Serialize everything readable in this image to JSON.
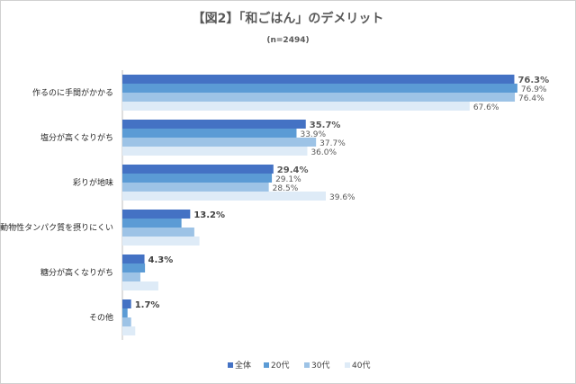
{
  "chart_data": {
    "type": "bar",
    "orientation": "horizontal",
    "title": "【図2】「和ごはん」のデメリット",
    "subtitle": "(n=2494)",
    "categories": [
      "作るのに手間がかかる",
      "塩分が高くなりがち",
      "彩りが地味",
      "動物性タンパク質を摂りにくい",
      "糖分が高くなりがち",
      "その他"
    ],
    "series": [
      {
        "name": "全体",
        "values": [
          76.3,
          35.7,
          29.4,
          13.2,
          4.3,
          1.7
        ],
        "labels": [
          "76.3%",
          "35.7%",
          "29.4%",
          "13.2%",
          "4.3%",
          "1.7%"
        ]
      },
      {
        "name": "20代",
        "values": [
          76.9,
          33.9,
          29.1,
          11.5,
          4.4,
          1.0
        ],
        "labels": [
          "76.9%",
          "33.9%",
          "29.1%",
          "",
          "",
          ""
        ]
      },
      {
        "name": "30代",
        "values": [
          76.4,
          37.7,
          28.5,
          14.0,
          3.5,
          1.7
        ],
        "labels": [
          "76.4%",
          "37.7%",
          "28.5%",
          "",
          "",
          ""
        ]
      },
      {
        "name": "40代",
        "values": [
          67.6,
          36.0,
          39.6,
          15.0,
          7.0,
          2.5
        ],
        "labels": [
          "67.6%",
          "36.0%",
          "39.6%",
          "",
          "",
          ""
        ]
      }
    ],
    "xlim": [
      0,
      82
    ],
    "grid": false,
    "legend_position": "bottom",
    "colors": {
      "series": [
        "#4472c4",
        "#5b9bd5",
        "#9dc3e6",
        "#deebf7"
      ],
      "highlight_label": "#ff3399",
      "axis": "#bfbfbf"
    }
  }
}
